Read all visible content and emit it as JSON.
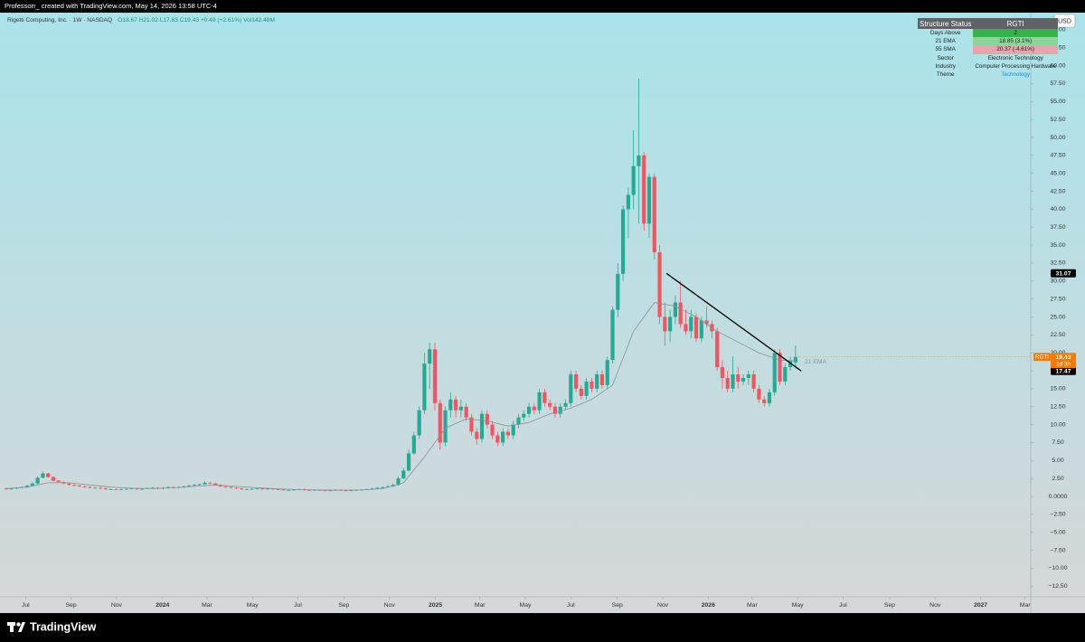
{
  "header": {
    "caption": "Professorr_ created with TradingView.com, May 14, 2026 13:58 UTC-4"
  },
  "chart_data": {
    "type": "candlestick",
    "title": "Rigetti Computing, Inc. · 1W · NASDAQ",
    "ohlc_legend": "O18.67 H21.02 L17.83 C19.43 +0.49 (+2.61%) Vol142.48M",
    "currency": "USD",
    "up_color": "#22ab94",
    "down_color": "#f7525f",
    "grid": false,
    "candles": [
      [
        1.1,
        1.2,
        0.9,
        1.0
      ],
      [
        1.0,
        1.2,
        0.9,
        1.1
      ],
      [
        1.1,
        1.3,
        1.0,
        1.2
      ],
      [
        1.2,
        1.4,
        1.1,
        1.3
      ],
      [
        1.3,
        1.6,
        1.2,
        1.5
      ],
      [
        1.5,
        2.0,
        1.4,
        1.8
      ],
      [
        1.8,
        2.8,
        1.7,
        2.6
      ],
      [
        2.6,
        3.5,
        2.5,
        3.2
      ],
      [
        3.2,
        3.3,
        2.6,
        2.7
      ],
      [
        2.7,
        2.8,
        2.1,
        2.2
      ],
      [
        2.2,
        2.3,
        1.9,
        2.0
      ],
      [
        2.0,
        2.1,
        1.7,
        1.8
      ],
      [
        1.8,
        1.9,
        1.5,
        1.6
      ],
      [
        1.6,
        1.7,
        1.4,
        1.5
      ],
      [
        1.5,
        1.6,
        1.3,
        1.4
      ],
      [
        1.4,
        1.5,
        1.2,
        1.3
      ],
      [
        1.3,
        1.4,
        1.1,
        1.2
      ],
      [
        1.2,
        1.3,
        1.1,
        1.2
      ],
      [
        1.2,
        1.3,
        1.0,
        1.1
      ],
      [
        1.1,
        1.2,
        0.9,
        1.0
      ],
      [
        1.0,
        1.1,
        0.9,
        1.0
      ],
      [
        1.0,
        1.1,
        0.9,
        0.95
      ],
      [
        0.95,
        1.1,
        0.9,
        1.0
      ],
      [
        1.0,
        1.1,
        0.9,
        1.05
      ],
      [
        1.05,
        1.2,
        1.0,
        1.1
      ],
      [
        1.1,
        1.2,
        0.9,
        1.0
      ],
      [
        1.0,
        1.1,
        0.9,
        1.05
      ],
      [
        1.05,
        1.2,
        1.0,
        1.15
      ],
      [
        1.15,
        1.3,
        1.1,
        1.2
      ],
      [
        1.2,
        1.3,
        1.0,
        1.1
      ],
      [
        1.1,
        1.3,
        1.0,
        1.2
      ],
      [
        1.2,
        1.4,
        1.1,
        1.3
      ],
      [
        1.3,
        1.4,
        1.1,
        1.2
      ],
      [
        1.2,
        1.4,
        1.1,
        1.3
      ],
      [
        1.3,
        1.5,
        1.2,
        1.4
      ],
      [
        1.4,
        1.6,
        1.3,
        1.5
      ],
      [
        1.5,
        1.7,
        1.4,
        1.6
      ],
      [
        1.6,
        1.8,
        1.5,
        1.7
      ],
      [
        1.7,
        2.1,
        1.6,
        1.9
      ],
      [
        1.9,
        2.0,
        1.7,
        1.8
      ],
      [
        1.8,
        1.9,
        1.5,
        1.6
      ],
      [
        1.6,
        1.7,
        1.3,
        1.4
      ],
      [
        1.4,
        1.5,
        1.2,
        1.3
      ],
      [
        1.3,
        1.4,
        1.1,
        1.2
      ],
      [
        1.2,
        1.3,
        1.0,
        1.1
      ],
      [
        1.1,
        1.2,
        0.9,
        1.0
      ],
      [
        1.0,
        1.1,
        0.9,
        1.0
      ],
      [
        1.0,
        1.1,
        0.9,
        1.05
      ],
      [
        1.05,
        1.2,
        1.0,
        1.1
      ],
      [
        1.1,
        1.2,
        0.9,
        1.0
      ],
      [
        1.0,
        1.2,
        0.9,
        1.1
      ],
      [
        1.1,
        1.2,
        0.9,
        1.0
      ],
      [
        1.0,
        1.1,
        0.9,
        0.95
      ],
      [
        0.95,
        1.0,
        0.8,
        0.9
      ],
      [
        0.9,
        1.0,
        0.8,
        0.9
      ],
      [
        0.9,
        1.0,
        0.8,
        0.95
      ],
      [
        0.95,
        1.1,
        0.9,
        1.0
      ],
      [
        1.0,
        1.1,
        0.8,
        0.9
      ],
      [
        0.9,
        1.0,
        0.8,
        0.85
      ],
      [
        0.85,
        1.0,
        0.8,
        0.9
      ],
      [
        0.9,
        1.0,
        0.8,
        0.85
      ],
      [
        0.85,
        0.9,
        0.7,
        0.8
      ],
      [
        0.8,
        0.9,
        0.7,
        0.85
      ],
      [
        0.85,
        1.0,
        0.8,
        0.9
      ],
      [
        0.9,
        1.0,
        0.8,
        0.85
      ],
      [
        0.85,
        0.9,
        0.7,
        0.8
      ],
      [
        0.8,
        0.9,
        0.7,
        0.85
      ],
      [
        0.85,
        1.0,
        0.8,
        0.9
      ],
      [
        0.9,
        1.0,
        0.8,
        0.95
      ],
      [
        0.95,
        1.1,
        0.9,
        1.0
      ],
      [
        1.0,
        1.2,
        0.9,
        1.1
      ],
      [
        1.1,
        1.3,
        1.0,
        1.2
      ],
      [
        1.2,
        1.4,
        1.1,
        1.3
      ],
      [
        1.3,
        1.6,
        1.2,
        1.4
      ],
      [
        1.4,
        1.8,
        1.3,
        1.6
      ],
      [
        1.6,
        2.8,
        1.5,
        2.5
      ],
      [
        2.5,
        4.0,
        2.4,
        3.6
      ],
      [
        3.6,
        6.5,
        3.5,
        6.0
      ],
      [
        6.0,
        9.0,
        5.8,
        8.5
      ],
      [
        8.5,
        12.5,
        8.0,
        12.0
      ],
      [
        12.0,
        20.0,
        11.5,
        18.5
      ],
      [
        18.5,
        21.4,
        15.0,
        20.5
      ],
      [
        20.5,
        21.4,
        12.0,
        13.0
      ],
      [
        13.0,
        13.5,
        6.5,
        7.5
      ],
      [
        7.5,
        12.5,
        7.0,
        12.0
      ],
      [
        12.0,
        14.5,
        11.0,
        13.5
      ],
      [
        13.5,
        14.0,
        11.0,
        12.0
      ],
      [
        12.0,
        13.5,
        11.0,
        12.5
      ],
      [
        12.5,
        13.0,
        10.5,
        11.0
      ],
      [
        11.0,
        11.5,
        8.5,
        9.0
      ],
      [
        9.0,
        9.5,
        7.2,
        8.0
      ],
      [
        8.0,
        12.0,
        7.5,
        11.5
      ],
      [
        11.5,
        12.0,
        9.5,
        10.0
      ],
      [
        10.0,
        10.5,
        8.0,
        8.5
      ],
      [
        8.5,
        9.0,
        7.0,
        7.5
      ],
      [
        7.5,
        9.5,
        7.0,
        9.0
      ],
      [
        9.0,
        9.5,
        8.0,
        8.5
      ],
      [
        8.5,
        10.5,
        8.0,
        10.0
      ],
      [
        10.0,
        11.5,
        9.5,
        11.0
      ],
      [
        11.0,
        12.0,
        10.5,
        11.5
      ],
      [
        11.5,
        13.0,
        11.0,
        12.5
      ],
      [
        12.5,
        13.0,
        11.5,
        12.0
      ],
      [
        12.0,
        15.0,
        11.5,
        14.5
      ],
      [
        14.5,
        15.0,
        12.5,
        13.0
      ],
      [
        13.0,
        13.5,
        12.0,
        12.5
      ],
      [
        12.5,
        13.0,
        11.0,
        11.5
      ],
      [
        11.5,
        13.0,
        11.0,
        12.5
      ],
      [
        12.5,
        13.5,
        12.0,
        13.0
      ],
      [
        13.0,
        17.5,
        12.5,
        17.0
      ],
      [
        17.0,
        17.5,
        14.5,
        15.0
      ],
      [
        15.0,
        15.5,
        13.5,
        14.0
      ],
      [
        14.0,
        16.5,
        13.5,
        16.0
      ],
      [
        16.0,
        16.5,
        14.5,
        15.0
      ],
      [
        15.0,
        17.5,
        14.5,
        17.0
      ],
      [
        17.0,
        17.5,
        15.0,
        15.5
      ],
      [
        15.5,
        19.5,
        15.0,
        19.0
      ],
      [
        19.0,
        26.5,
        18.5,
        26.0
      ],
      [
        26.0,
        32.5,
        25.0,
        31.0
      ],
      [
        31.0,
        40.5,
        30.0,
        40.0
      ],
      [
        40.0,
        43.0,
        36.0,
        42.0
      ],
      [
        42.0,
        51.0,
        40.0,
        46.0
      ],
      [
        46.0,
        58.2,
        38.0,
        47.5
      ],
      [
        47.5,
        48.0,
        37.0,
        38.0
      ],
      [
        38.0,
        45.0,
        36.0,
        44.5
      ],
      [
        44.5,
        45.0,
        33.0,
        34.0
      ],
      [
        34.0,
        35.0,
        24.0,
        25.0
      ],
      [
        25.0,
        27.0,
        21.0,
        23.0
      ],
      [
        23.0,
        26.0,
        21.5,
        25.0
      ],
      [
        25.0,
        28.0,
        24.0,
        27.0
      ],
      [
        27.0,
        30.0,
        23.5,
        24.0
      ],
      [
        24.0,
        26.0,
        22.5,
        23.0
      ],
      [
        23.0,
        26.0,
        22.0,
        25.0
      ],
      [
        25.0,
        25.5,
        21.5,
        22.0
      ],
      [
        22.0,
        25.0,
        21.5,
        24.5
      ],
      [
        24.5,
        26.5,
        23.5,
        24.0
      ],
      [
        24.0,
        24.5,
        22.0,
        23.0
      ],
      [
        23.0,
        23.5,
        17.5,
        18.0
      ],
      [
        18.0,
        19.0,
        15.0,
        16.5
      ],
      [
        16.5,
        17.5,
        14.5,
        15.0
      ],
      [
        15.0,
        19.5,
        14.5,
        17.0
      ],
      [
        17.0,
        18.0,
        15.0,
        16.0
      ],
      [
        16.0,
        17.0,
        15.5,
        16.5
      ],
      [
        16.5,
        17.5,
        15.5,
        17.0
      ],
      [
        17.0,
        17.5,
        14.5,
        15.0
      ],
      [
        15.0,
        15.5,
        13.0,
        13.5
      ],
      [
        13.5,
        14.0,
        12.5,
        13.0
      ],
      [
        13.0,
        15.0,
        12.5,
        14.5
      ],
      [
        14.5,
        20.5,
        14.0,
        20.0
      ],
      [
        20.0,
        20.5,
        15.5,
        16.0
      ],
      [
        16.0,
        18.5,
        15.5,
        18.0
      ],
      [
        18.0,
        19.5,
        17.5,
        18.94
      ],
      [
        18.67,
        21.02,
        17.83,
        19.43
      ]
    ],
    "xlim": [
      -1.2,
      196
    ],
    "xticks": [
      {
        "value": 3.7,
        "label": "Jul"
      },
      {
        "value": 12.4,
        "label": "Sep"
      },
      {
        "value": 21.1,
        "label": "Nov"
      },
      {
        "value": 29.9,
        "label": "2024"
      },
      {
        "value": 38.4,
        "label": "Mar"
      },
      {
        "value": 47.1,
        "label": "May"
      },
      {
        "value": 55.8,
        "label": "Jul"
      },
      {
        "value": 64.6,
        "label": "Sep"
      },
      {
        "value": 73.3,
        "label": "Nov"
      },
      {
        "value": 82.1,
        "label": "2025"
      },
      {
        "value": 90.6,
        "label": "Mar"
      },
      {
        "value": 99.3,
        "label": "May"
      },
      {
        "value": 108,
        "label": "Jul"
      },
      {
        "value": 116.9,
        "label": "Sep"
      },
      {
        "value": 125.6,
        "label": "Nov"
      },
      {
        "value": 134.3,
        "label": "2026"
      },
      {
        "value": 142.7,
        "label": "Mar"
      },
      {
        "value": 151.4,
        "label": "May"
      },
      {
        "value": 160.1,
        "label": "Jul"
      },
      {
        "value": 169,
        "label": "Sep"
      },
      {
        "value": 177.7,
        "label": "Nov"
      },
      {
        "value": 186.4,
        "label": "2027"
      },
      {
        "value": 194.9,
        "label": "Mar"
      }
    ],
    "ylim": [
      -13.98,
      67.38
    ],
    "yticks": [
      {
        "value": 65,
        "label": "65.00"
      },
      {
        "value": 62.5,
        "label": "62.50"
      },
      {
        "value": 60,
        "label": "60.00"
      },
      {
        "value": 57.5,
        "label": "57.50"
      },
      {
        "value": 55,
        "label": "55.00"
      },
      {
        "value": 52.5,
        "label": "52.50"
      },
      {
        "value": 50,
        "label": "50.00"
      },
      {
        "value": 47.5,
        "label": "47.50"
      },
      {
        "value": 45,
        "label": "45.00"
      },
      {
        "value": 42.5,
        "label": "42.50"
      },
      {
        "value": 40,
        "label": "40.00"
      },
      {
        "value": 37.5,
        "label": "37.50"
      },
      {
        "value": 35,
        "label": "35.00"
      },
      {
        "value": 32.5,
        "label": "32.50"
      },
      {
        "value": 30,
        "label": "30.00"
      },
      {
        "value": 27.5,
        "label": "27.50"
      },
      {
        "value": 25,
        "label": "25.00"
      },
      {
        "value": 22.5,
        "label": "22.50"
      },
      {
        "value": 20,
        "label": "20.00"
      },
      {
        "value": 17.5,
        "label": "17.50"
      },
      {
        "value": 15,
        "label": "15.00"
      },
      {
        "value": 12.5,
        "label": "12.50"
      },
      {
        "value": 10,
        "label": "10.00"
      },
      {
        "value": 7.5,
        "label": "7.50"
      },
      {
        "value": 5,
        "label": "5.00"
      },
      {
        "value": 2.5,
        "label": "2.50"
      },
      {
        "value": 0,
        "label": "0.0000"
      },
      {
        "value": -2.5,
        "label": "−2.50"
      },
      {
        "value": -5,
        "label": "−5.00"
      },
      {
        "value": -7.5,
        "label": "−7.50"
      },
      {
        "value": -10,
        "label": "−10.00"
      },
      {
        "value": -12.5,
        "label": "−12.50"
      }
    ],
    "series": [
      {
        "name": "21 EMA",
        "color": "#8a9096",
        "x": [
          0,
          4,
          8,
          12,
          16,
          20,
          24,
          28,
          32,
          36,
          40,
          44,
          48,
          52,
          56,
          60,
          64,
          68,
          72,
          76,
          80,
          84,
          88,
          92,
          96,
          100,
          104,
          108,
          112,
          116,
          120,
          124,
          128,
          132,
          136,
          140,
          144,
          148,
          151
        ],
        "values": [
          1.1,
          1.3,
          1.9,
          1.9,
          1.6,
          1.3,
          1.15,
          1.1,
          1.2,
          1.4,
          1.6,
          1.4,
          1.2,
          1.05,
          0.95,
          0.9,
          0.88,
          0.9,
          1.1,
          1.9,
          5.5,
          9.5,
          10.8,
          10.5,
          9.8,
          10.3,
          11.5,
          12.3,
          13.5,
          15.5,
          23,
          27,
          26.5,
          25,
          23,
          21.5,
          20,
          19,
          18.85
        ]
      }
    ],
    "trendline": {
      "color": "#000000",
      "x": [
        126.3,
        152.1
      ],
      "values": [
        31.07,
        17.47
      ]
    },
    "last_price": {
      "symbol": "RGTI",
      "value": 19.43,
      "countdown": "1d 3h",
      "color": "#f57c00"
    }
  },
  "status_table": {
    "header": [
      "Structure Status",
      "RGTI"
    ],
    "rows": [
      [
        "Days Above",
        "2"
      ],
      [
        "21 EMA",
        "18.85 (3.1%)"
      ],
      [
        "55 SMA",
        "20.37 (-4.61%)"
      ],
      [
        "Sector",
        "Electronic Technology"
      ],
      [
        "Industry",
        "Computer Processing Hardware"
      ],
      [
        "Theme",
        "Technology"
      ]
    ]
  },
  "footer": {
    "brand": "TradingView"
  }
}
